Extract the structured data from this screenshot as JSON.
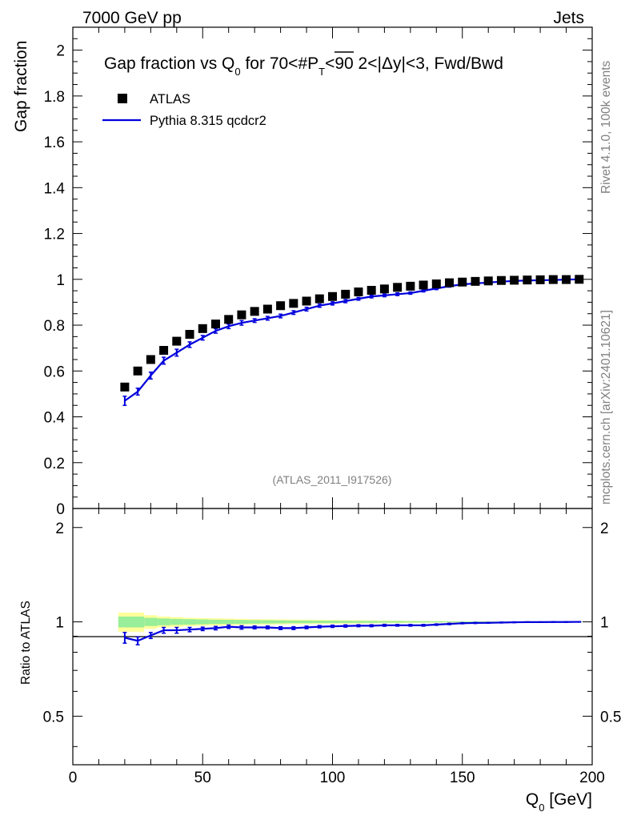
{
  "header": {
    "left": "7000 GeV pp",
    "right": "Jets"
  },
  "side": {
    "rivet": "Rivet 4.1.0,  100k events",
    "mcplots": "mcplots.cern.ch [arXiv:2401.10621]"
  },
  "colors": {
    "data": "#000000",
    "mc": "#0000dd",
    "band_outer": "#ffff99",
    "band_inner": "#99ee99"
  },
  "chart_data": [
    {
      "type": "scatter",
      "title_main": "Gap fraction vs Q",
      "title_sub": "0",
      "title_rest": " for 70<#",
      "title_pt": "P",
      "title_pt_sub": "T",
      "title_tail": "<90  2<|Δy|<3, Fwd/Bwd",
      "ylabel": "Gap fraction",
      "xlabel_main": "Q",
      "xlabel_sub": "0",
      "xlabel_tail": " [GeV]",
      "watermark": "(ATLAS_2011_I917526)",
      "xlim": [
        0,
        200
      ],
      "ylim": [
        0,
        2.1
      ],
      "yticks": [
        0,
        0.2,
        0.4,
        0.6,
        0.8,
        1,
        1.2,
        1.4,
        1.6,
        1.8,
        2
      ],
      "ytick_labels": [
        "0",
        "0.2",
        "0.4",
        "0.6",
        "0.8",
        "1",
        "1.2",
        "1.4",
        "1.6",
        "1.8",
        "2"
      ],
      "legend": [
        {
          "name": "ATLAS",
          "style": "square"
        },
        {
          "name": "Pythia 8.315 qcdcr2",
          "style": "line"
        }
      ],
      "x": [
        20,
        25,
        30,
        35,
        40,
        45,
        50,
        55,
        60,
        65,
        70,
        75,
        80,
        85,
        90,
        95,
        100,
        105,
        110,
        115,
        120,
        125,
        130,
        135,
        140,
        145,
        150,
        155,
        160,
        165,
        170,
        175,
        180,
        185,
        190,
        195
      ],
      "series": [
        {
          "name": "ATLAS",
          "values": [
            0.53,
            0.6,
            0.65,
            0.69,
            0.73,
            0.76,
            0.785,
            0.805,
            0.825,
            0.845,
            0.86,
            0.87,
            0.885,
            0.895,
            0.905,
            0.915,
            0.925,
            0.935,
            0.945,
            0.952,
            0.958,
            0.965,
            0.97,
            0.975,
            0.98,
            0.985,
            0.988,
            0.991,
            0.993,
            0.995,
            0.996,
            0.997,
            0.998,
            0.999,
            0.999,
            1.0
          ]
        },
        {
          "name": "Pythia 8.315 qcdcr2",
          "values": [
            0.47,
            0.51,
            0.58,
            0.645,
            0.68,
            0.715,
            0.745,
            0.775,
            0.795,
            0.81,
            0.82,
            0.83,
            0.84,
            0.855,
            0.87,
            0.885,
            0.895,
            0.905,
            0.915,
            0.925,
            0.93,
            0.935,
            0.94,
            0.95,
            0.96,
            0.97,
            0.978,
            0.982,
            0.986,
            0.99,
            0.993,
            0.995,
            0.996,
            0.997,
            0.999,
            1.0
          ],
          "errors": [
            0.02,
            0.015,
            0.015,
            0.015,
            0.015,
            0.012,
            0.01,
            0.01,
            0.01,
            0.01,
            0.008,
            0.008,
            0.008,
            0.008,
            0.008,
            0.007,
            0.007,
            0.007,
            0.006,
            0.006,
            0.006,
            0.006,
            0.005,
            0.005,
            0.005,
            0.004,
            0.004,
            0.004,
            0.003,
            0.003,
            0.003,
            0.002,
            0.002,
            0.002,
            0.002,
            0.002
          ]
        }
      ]
    },
    {
      "type": "line",
      "ylabel": "Ratio to ATLAS",
      "xlim": [
        0,
        200
      ],
      "ylim": [
        0.35,
        2.3
      ],
      "yscale": "log",
      "yticks": [
        0.5,
        1,
        2
      ],
      "ytick_labels": [
        "0.5",
        "1",
        "2"
      ],
      "xticks": [
        0,
        50,
        100,
        150,
        200
      ],
      "xtick_labels": [
        "0",
        "50",
        "100",
        "150",
        "200"
      ],
      "band_outer": [
        0.07,
        0.07,
        0.05,
        0.04,
        0.035,
        0.03,
        0.028,
        0.026,
        0.024,
        0.022,
        0.02,
        0.019,
        0.018,
        0.017,
        0.016,
        0.015,
        0.014,
        0.013,
        0.012,
        0.011,
        0.01,
        0.009,
        0.008,
        0.007,
        0.006,
        0.005,
        0.004,
        0.004,
        0.003,
        0.003,
        0.002,
        0.002,
        0.002,
        0.001,
        0.001,
        0.001
      ],
      "band_inner": [
        0.04,
        0.04,
        0.03,
        0.025,
        0.022,
        0.02,
        0.018,
        0.016,
        0.015,
        0.014,
        0.013,
        0.012,
        0.011,
        0.01,
        0.01,
        0.009,
        0.009,
        0.008,
        0.007,
        0.007,
        0.006,
        0.006,
        0.005,
        0.005,
        0.004,
        0.003,
        0.003,
        0.003,
        0.002,
        0.002,
        0.001,
        0.001,
        0.001,
        0.001,
        0.001,
        0.001
      ],
      "ratio": [
        0.89,
        0.87,
        0.905,
        0.94,
        0.94,
        0.945,
        0.95,
        0.955,
        0.965,
        0.96,
        0.96,
        0.96,
        0.955,
        0.955,
        0.96,
        0.965,
        0.968,
        0.97,
        0.972,
        0.972,
        0.975,
        0.975,
        0.975,
        0.975,
        0.98,
        0.985,
        0.99,
        0.992,
        0.993,
        0.995,
        0.997,
        0.998,
        0.998,
        0.999,
        0.999,
        1.0
      ],
      "ratio_err": [
        0.035,
        0.025,
        0.02,
        0.02,
        0.02,
        0.015,
        0.012,
        0.012,
        0.012,
        0.012,
        0.01,
        0.01,
        0.01,
        0.01,
        0.009,
        0.008,
        0.008,
        0.008,
        0.007,
        0.007,
        0.007,
        0.006,
        0.006,
        0.006,
        0.005,
        0.005,
        0.004,
        0.004,
        0.003,
        0.003,
        0.003,
        0.002,
        0.002,
        0.002,
        0.002,
        0.002
      ]
    }
  ]
}
